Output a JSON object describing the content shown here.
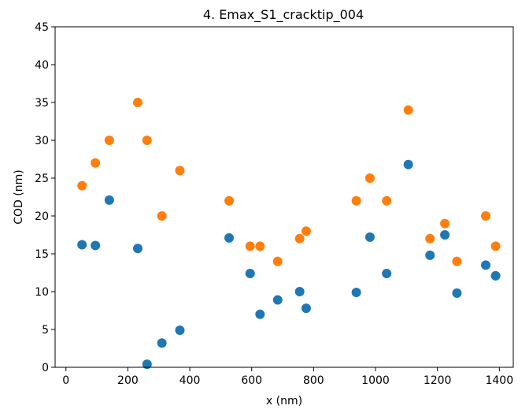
{
  "chart_data": {
    "type": "scatter",
    "title": "4. Emax_S1_cracktip_004",
    "xlabel": "x (nm)",
    "ylabel": "COD (nm)",
    "xlim": [
      -35,
      1445
    ],
    "ylim": [
      0,
      45
    ],
    "xticks": [
      0,
      200,
      400,
      600,
      800,
      1000,
      1200,
      1400
    ],
    "yticks": [
      0,
      5,
      10,
      15,
      20,
      25,
      30,
      35,
      40,
      45
    ],
    "grid": false,
    "legend": "none",
    "series": [
      {
        "color": "#1f77b4",
        "points": [
          [
            52,
            16.2
          ],
          [
            95,
            16.1
          ],
          [
            140,
            22.1
          ],
          [
            232,
            15.7
          ],
          [
            262,
            0.4
          ],
          [
            310,
            3.2
          ],
          [
            368,
            4.9
          ],
          [
            527,
            17.1
          ],
          [
            595,
            12.4
          ],
          [
            627,
            7.0
          ],
          [
            684,
            8.9
          ],
          [
            755,
            10.0
          ],
          [
            776,
            7.8
          ],
          [
            938,
            9.9
          ],
          [
            982,
            17.2
          ],
          [
            1036,
            12.4
          ],
          [
            1106,
            26.8
          ],
          [
            1176,
            14.8
          ],
          [
            1224,
            17.5
          ],
          [
            1263,
            9.8
          ],
          [
            1356,
            13.5
          ],
          [
            1388,
            12.1
          ]
        ]
      },
      {
        "color": "#ff7f0e",
        "points": [
          [
            52,
            24
          ],
          [
            95,
            27
          ],
          [
            140,
            30
          ],
          [
            232,
            35
          ],
          [
            262,
            30
          ],
          [
            310,
            20
          ],
          [
            368,
            26
          ],
          [
            527,
            22
          ],
          [
            595,
            16
          ],
          [
            627,
            16
          ],
          [
            684,
            14
          ],
          [
            755,
            17
          ],
          [
            776,
            18
          ],
          [
            938,
            22
          ],
          [
            982,
            25
          ],
          [
            1036,
            22
          ],
          [
            1106,
            34
          ],
          [
            1176,
            17
          ],
          [
            1224,
            19
          ],
          [
            1263,
            14
          ],
          [
            1356,
            20
          ],
          [
            1388,
            16
          ]
        ]
      }
    ]
  }
}
